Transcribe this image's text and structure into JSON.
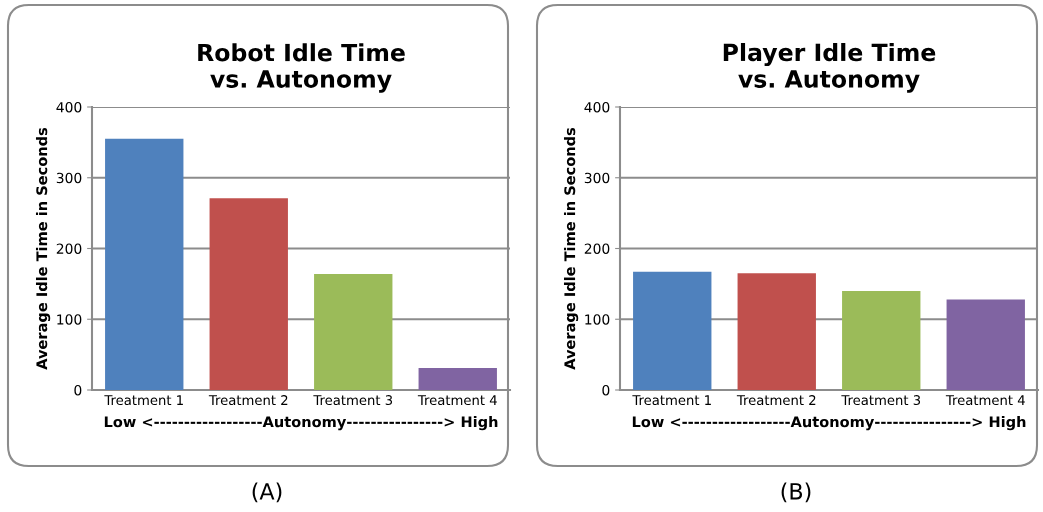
{
  "chart_data": [
    {
      "type": "bar",
      "title": "Robot Idle Time\nvs. Autonomy",
      "ylabel": "Average Idle Time in Seconds",
      "xlabel": "Low <------------------Autonomy----------------> High",
      "categories": [
        "Treatment 1",
        "Treatment 2",
        "Treatment 3",
        "Treatment 4"
      ],
      "values": [
        355,
        271,
        164,
        31
      ],
      "colors": [
        "#4f81bd",
        "#c0504d",
        "#9bbb59",
        "#8064a2"
      ],
      "ylim": [
        0,
        400
      ],
      "yticks": [
        0,
        100,
        200,
        300,
        400
      ],
      "grid": "y",
      "annotations": [
        "(A)"
      ]
    },
    {
      "type": "bar",
      "title": "Player Idle Time\nvs. Autonomy",
      "ylabel": "Average Idle Time in Seconds",
      "xlabel": "Low <------------------Autonomy----------------> High",
      "categories": [
        "Treatment 1",
        "Treatment 2",
        "Treatment 3",
        "Treatment 4"
      ],
      "values": [
        167,
        165,
        140,
        128
      ],
      "colors": [
        "#4f81bd",
        "#c0504d",
        "#9bbb59",
        "#8064a2"
      ],
      "ylim": [
        0,
        400
      ],
      "yticks": [
        0,
        100,
        200,
        300,
        400
      ],
      "grid": "y",
      "annotations": [
        "(B)"
      ]
    }
  ]
}
